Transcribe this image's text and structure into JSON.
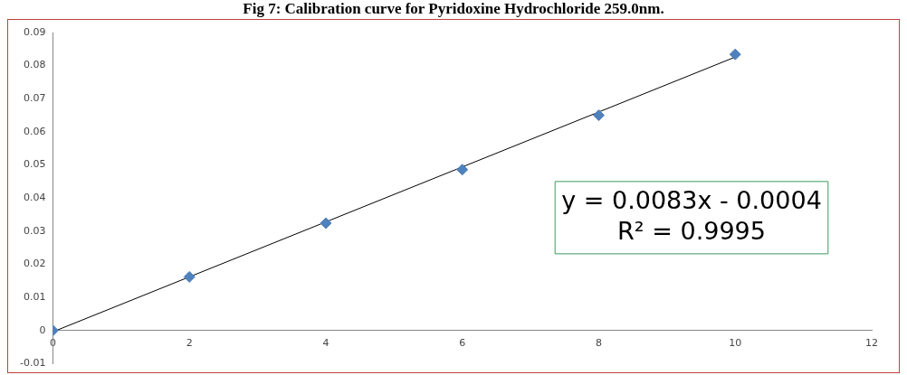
{
  "chart_data": {
    "type": "scatter",
    "title": "Fig 7: Calibration curve for Pyridoxine Hydrochloride 259.0nm.",
    "x": [
      0,
      2,
      4,
      6,
      8,
      10
    ],
    "series": [
      {
        "color": "#4f81bd",
        "marker": "diamond",
        "values": [
          0,
          0.0162,
          0.0324,
          0.0486,
          0.065,
          0.0834
        ]
      },
      {
        "type": "line",
        "color": "#000000",
        "x": [
          0,
          10
        ],
        "values": [
          -0.0004,
          0.0826
        ],
        "marker": "none",
        "line_style": "solid"
      }
    ],
    "xlim": [
      0,
      12
    ],
    "xticks": [
      0,
      2,
      4,
      6,
      8,
      10,
      12
    ],
    "ylim": [
      -0.01,
      0.09
    ],
    "yticks": [
      -0.01,
      0,
      0.01,
      0.02,
      0.03,
      0.04,
      0.05,
      0.06,
      0.07,
      0.08,
      0.09
    ],
    "grid": false,
    "legend": false,
    "annotations": [
      "y = 0.0083x - 0.0004",
      "R² = 0.9995"
    ]
  }
}
